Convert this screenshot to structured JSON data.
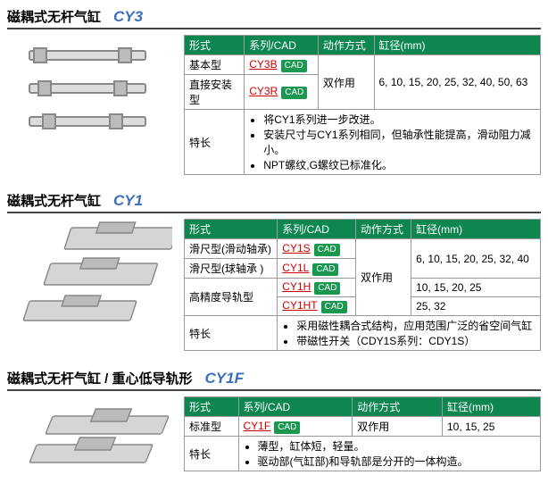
{
  "sections": [
    {
      "title": "磁耦式无杆气缸",
      "code": "CY3",
      "headers": [
        "形式",
        "系列/CAD",
        "动作方式",
        "缸径(mm)"
      ],
      "rows": [
        {
          "type": "基本型",
          "series": "CY3B",
          "cad": true,
          "action": "双作用",
          "bore": "6, 10, 15, 20, 25, 32, 40, 50, 63",
          "action_rowspan": 2,
          "bore_rowspan": 2
        },
        {
          "type": "直接安装型",
          "series": "CY3R",
          "cad": true
        }
      ],
      "feature_label": "特长",
      "features": [
        "将CY1系列进一步改进。",
        "安装尺寸与CY1系列相同，但轴承性能提高，滑动阻力减小。",
        "NPT螺纹,G螺纹已标准化。"
      ],
      "img": "cy3"
    },
    {
      "title": "磁耦式无杆气缸",
      "code": "CY1",
      "headers": [
        "形式",
        "系列/CAD",
        "动作方式",
        "缸径(mm)"
      ],
      "rows": [
        {
          "type": "滑尺型(滑动轴承)",
          "series": "CY1S",
          "cad": true,
          "action": "双作用",
          "bore": "6, 10, 15, 20, 25, 32, 40",
          "action_rowspan": 4,
          "bore_rowspan": 2
        },
        {
          "type": "滑尺型(球轴承 )",
          "series": "CY1L",
          "cad": true
        },
        {
          "type": "高精度导轨型",
          "type_rowspan": 2,
          "series": "CY1H",
          "cad": true,
          "bore": "10, 15, 20, 25"
        },
        {
          "series": "CY1HT",
          "cad": true,
          "bore": "25, 32"
        }
      ],
      "feature_label": "特长",
      "features": [
        "采用磁性耦合式结构，应用范围广泛的省空间气缸",
        "带磁性开关（CDY1S系列：CDY1S）"
      ],
      "img": "cy1"
    },
    {
      "title": "磁耦式无杆气缸  / 重心低导轨形",
      "code": "CY1F",
      "headers": [
        "形式",
        "系列/CAD",
        "动作方式",
        "缸径(mm)"
      ],
      "rows": [
        {
          "type": "标准型",
          "series": "CY1F",
          "cad": true,
          "action": "双作用",
          "bore": "10, 15, 25"
        }
      ],
      "feature_label": "特长",
      "features": [
        "薄型，缸体短，轻量。",
        "驱动部(气缸部)和导轨部是分开的一体构造。"
      ],
      "img": "cy1f"
    }
  ]
}
